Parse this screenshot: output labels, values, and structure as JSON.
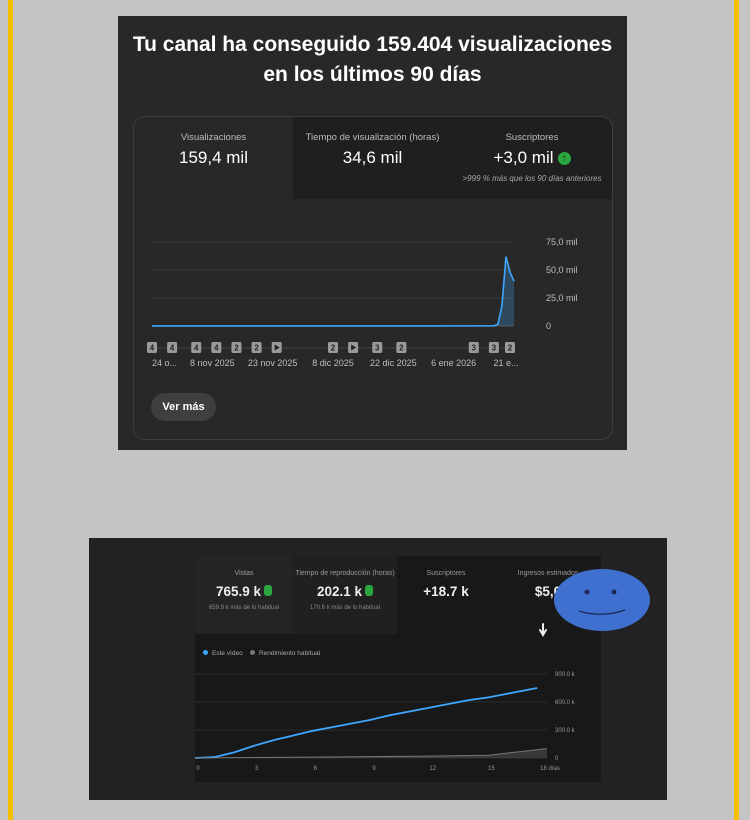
{
  "top_panel": {
    "headline": "Tu canal ha conseguido 159.404 visualizaciones en los últimos 90 días",
    "metrics": [
      {
        "label": "Visualizaciones",
        "value": "159,4 mil"
      },
      {
        "label": "Tiempo de visualización (horas)",
        "value": "34,6 mil"
      },
      {
        "label": "Suscriptores",
        "value": "+3,0 mil",
        "note": ">999 % más que los 90 días anteriores"
      }
    ],
    "button_label": "Ver más"
  },
  "bottom_panel": {
    "metrics": [
      {
        "label": "Vistas",
        "value": "765.9 k",
        "note": "659.9 k más de lo habitual"
      },
      {
        "label": "Tiempo de reproducción (horas)",
        "value": "202.1 k",
        "note": "170.6 k más de lo habitual"
      },
      {
        "label": "Suscriptores",
        "value": "+18.7 k"
      },
      {
        "label": "Ingresos estimados",
        "value": "$5,0"
      }
    ],
    "legend": [
      {
        "label": "Este vídeo",
        "color": "#3ea6ff"
      },
      {
        "label": "Rendimiento habitual",
        "color": "#777777"
      }
    ]
  },
  "colors": {
    "accent": "#3ea6ff",
    "up": "#2ba640",
    "frame": "#f5c000",
    "smiley": "#3f6fcf"
  },
  "chart_data": [
    {
      "type": "area",
      "title": "",
      "ytick_labels": [
        "75,0 mil",
        "50,0 mil",
        "25,0 mil",
        "0"
      ],
      "yticks": [
        75000,
        50000,
        25000,
        0
      ],
      "ylim": [
        0,
        75000
      ],
      "xlim": [
        0,
        90
      ],
      "xtick_labels": [
        "24 o...",
        "8 nov 2025",
        "23 nov 2025",
        "8 dic 2025",
        "22 dic 2025",
        "6 ene 2026",
        "21 e..."
      ],
      "xticks": [
        0,
        15,
        30,
        45,
        60,
        75,
        88
      ],
      "series": [
        {
          "x": [
            0,
            10,
            20,
            30,
            40,
            50,
            60,
            70,
            85,
            86,
            87,
            88,
            89,
            90
          ],
          "y": [
            100,
            100,
            100,
            100,
            100,
            100,
            100,
            100,
            200,
            1500,
            18000,
            62000,
            48000,
            40000
          ]
        }
      ],
      "markers": [
        {
          "x": 0,
          "label": "4"
        },
        {
          "x": 5,
          "label": "4"
        },
        {
          "x": 11,
          "label": "4"
        },
        {
          "x": 16,
          "label": "4"
        },
        {
          "x": 21,
          "label": "2"
        },
        {
          "x": 26,
          "label": "2"
        },
        {
          "x": 31,
          "label": "play"
        },
        {
          "x": 45,
          "label": "2"
        },
        {
          "x": 50,
          "label": "play"
        },
        {
          "x": 56,
          "label": "3"
        },
        {
          "x": 62,
          "label": "2"
        },
        {
          "x": 80,
          "label": "3"
        },
        {
          "x": 85,
          "label": "3"
        },
        {
          "x": 89,
          "label": "2"
        }
      ],
      "grid": true
    },
    {
      "type": "line",
      "ytick_labels": [
        "900.0 k",
        "600.0 k",
        "300.0 k",
        "0"
      ],
      "yticks": [
        900000,
        600000,
        300000,
        0
      ],
      "ylim": [
        0,
        900000
      ],
      "xtick_labels": [
        "0",
        "3",
        "6",
        "9",
        "12",
        "15",
        "18 días"
      ],
      "xticks": [
        0,
        3,
        6,
        9,
        12,
        15,
        18
      ],
      "xlim": [
        0,
        18
      ],
      "series": [
        {
          "x": [
            0,
            1,
            2,
            3,
            4,
            5,
            6,
            7,
            8,
            9,
            10,
            11,
            12,
            13,
            14,
            15,
            16,
            17,
            17.5
          ],
          "y": [
            0,
            10000,
            60000,
            130000,
            190000,
            240000,
            290000,
            330000,
            370000,
            410000,
            460000,
            500000,
            540000,
            580000,
            620000,
            650000,
            690000,
            730000,
            750000
          ]
        },
        {
          "x": [
            0,
            3,
            6,
            9,
            12,
            15,
            18
          ],
          "y": [
            0,
            5000,
            10000,
            15000,
            20000,
            30000,
            100000
          ]
        }
      ],
      "grid": true
    }
  ]
}
